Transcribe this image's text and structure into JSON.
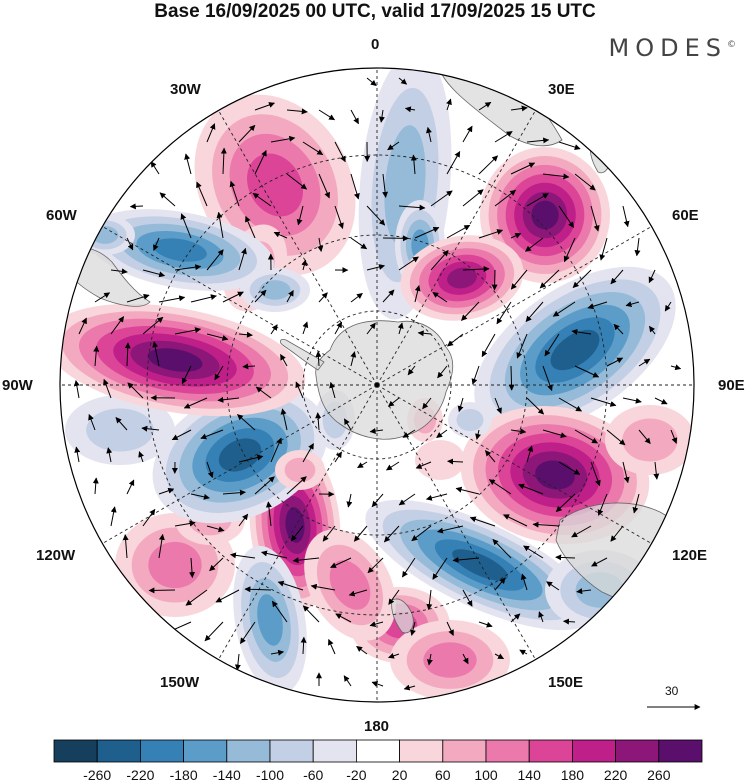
{
  "title": "Base 16/09/2025 00 UTC, valid 17/09/2025 15 UTC",
  "logo": "MODES",
  "logo_mark": "©",
  "longitude_labels": {
    "lon_0": "0",
    "lon_30e": "30E",
    "lon_60e": "60E",
    "lon_90e": "90E",
    "lon_120e": "120E",
    "lon_150e": "150E",
    "lon_180": "180",
    "lon_150w": "150W",
    "lon_120w": "120W",
    "lon_90w": "90W",
    "lon_60w": "60W",
    "lon_30w": "30W"
  },
  "reference_vector": "30",
  "colorbar": {
    "labels": [
      "-260",
      "-220",
      "-180",
      "-140",
      "-100",
      "-60",
      "-20",
      "20",
      "60",
      "100",
      "140",
      "180",
      "220",
      "260"
    ],
    "colors": [
      "#163f5e",
      "#1f5f8e",
      "#3580b4",
      "#5b9dc8",
      "#95bbd8",
      "#c3cfe4",
      "#e4e4f0",
      "#ffffff",
      "#f8d6dc",
      "#f3aac0",
      "#ec79ac",
      "#dc4597",
      "#be1f88",
      "#8d1679",
      "#5b0f6c"
    ]
  },
  "colors": {
    "land": "#d9d9d9",
    "coast": "#666666"
  }
}
